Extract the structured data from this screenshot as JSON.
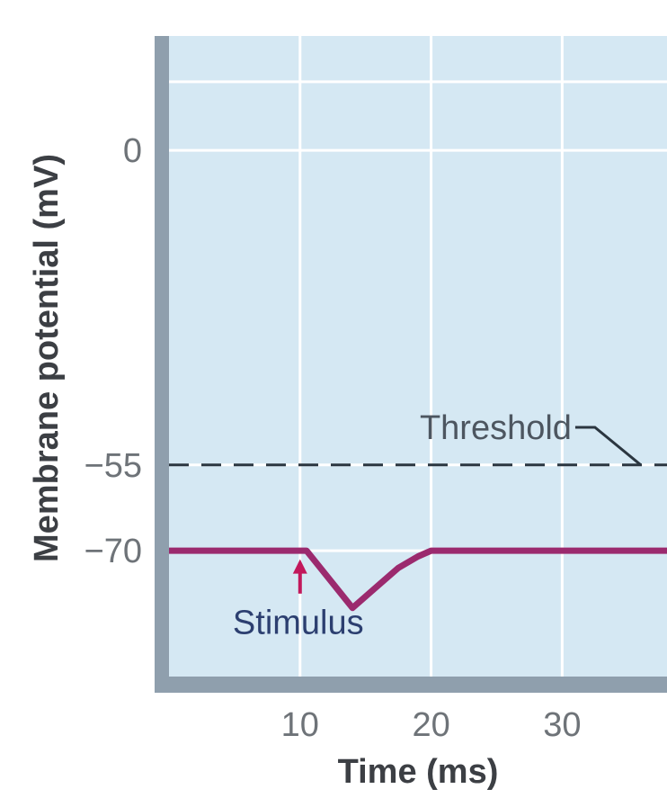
{
  "colors": {
    "plot_bg": "#d5e8f3",
    "frame": "#8f9fad",
    "grid": "#ffffff",
    "trace": "#9b2a6e",
    "threshold_line": "#2b3640",
    "arrow": "#c2185b",
    "threshold_text": "#4d5660",
    "stimulus_text": "#2c3f70"
  },
  "chart_data": {
    "type": "line",
    "xlabel": "Time (ms)",
    "ylabel": "Membrane potential (mV)",
    "xticks": [
      10,
      20,
      30
    ],
    "xtick_labels": [
      "10",
      "20",
      "30"
    ],
    "yticks": [
      0,
      -55,
      -70
    ],
    "ytick_labels": [
      "0",
      "−55",
      "−70"
    ],
    "xlim": [
      0,
      38
    ],
    "ylim": [
      -92,
      20
    ],
    "grid": true,
    "series": [
      {
        "x": [
          0,
          10.5,
          14,
          16,
          17.5,
          19,
          20,
          38
        ],
        "y": [
          -70,
          -70,
          -80,
          -76,
          -73,
          -71,
          -70,
          -70
        ]
      }
    ],
    "threshold": {
      "value": -55,
      "label": "Threshold",
      "leader": {
        "text_end_x": 31,
        "text_y": -50,
        "bend_x": 32.5,
        "end_x": 36
      }
    },
    "stimulus": {
      "label": "Stimulus",
      "x": 10,
      "arrow_top": -71.5,
      "arrow_bottom": -77.5,
      "text_y": -82.5
    }
  }
}
